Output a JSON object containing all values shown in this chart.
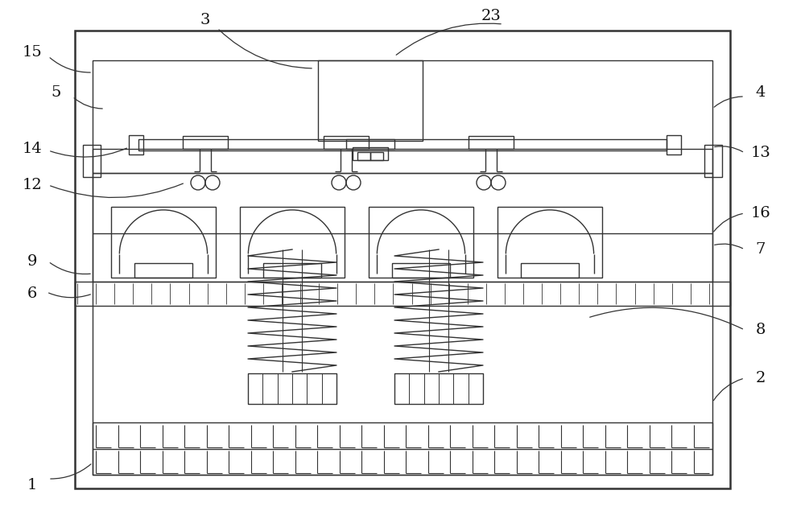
{
  "bg_color": "#ffffff",
  "lc": "#333333",
  "lw": 1.0,
  "tlw": 1.8,
  "fig_w": 10.0,
  "fig_h": 6.45,
  "label_fs": 14
}
